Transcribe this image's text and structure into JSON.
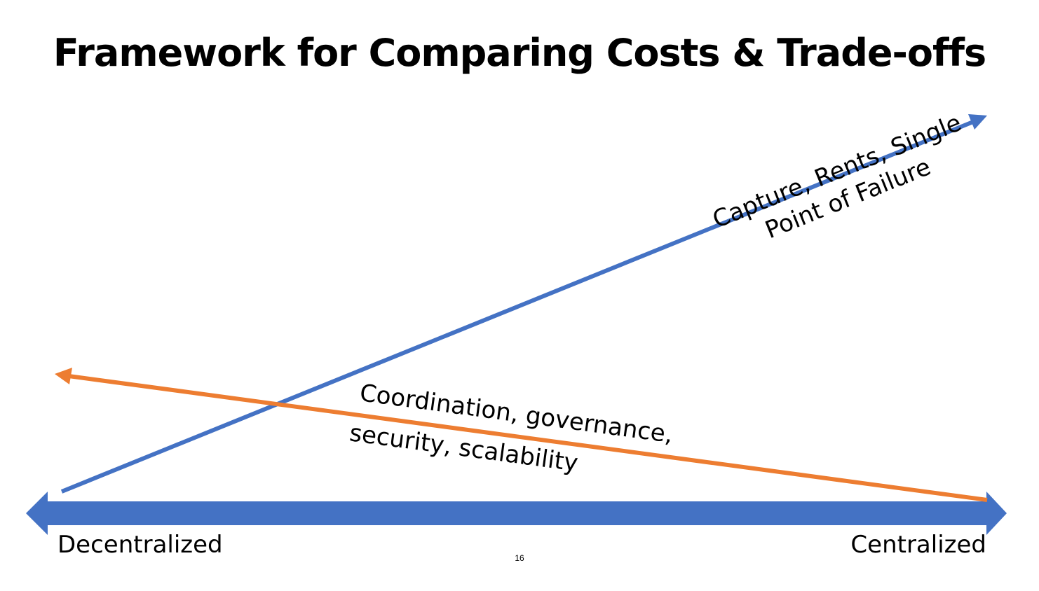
{
  "title": "Framework for Comparing Costs & Trade-offs",
  "axis": {
    "left_label": "Decentralized",
    "right_label": "Centralized",
    "color": "#4472C4"
  },
  "rising_arrow": {
    "line1": "Capture, Rents, Single",
    "line2": "Point of Failure",
    "color": "#4472C4"
  },
  "falling_arrow": {
    "line1": "Coordination, governance,",
    "line2": "security, scalability",
    "color": "#ED7D31"
  },
  "page_number": "16"
}
